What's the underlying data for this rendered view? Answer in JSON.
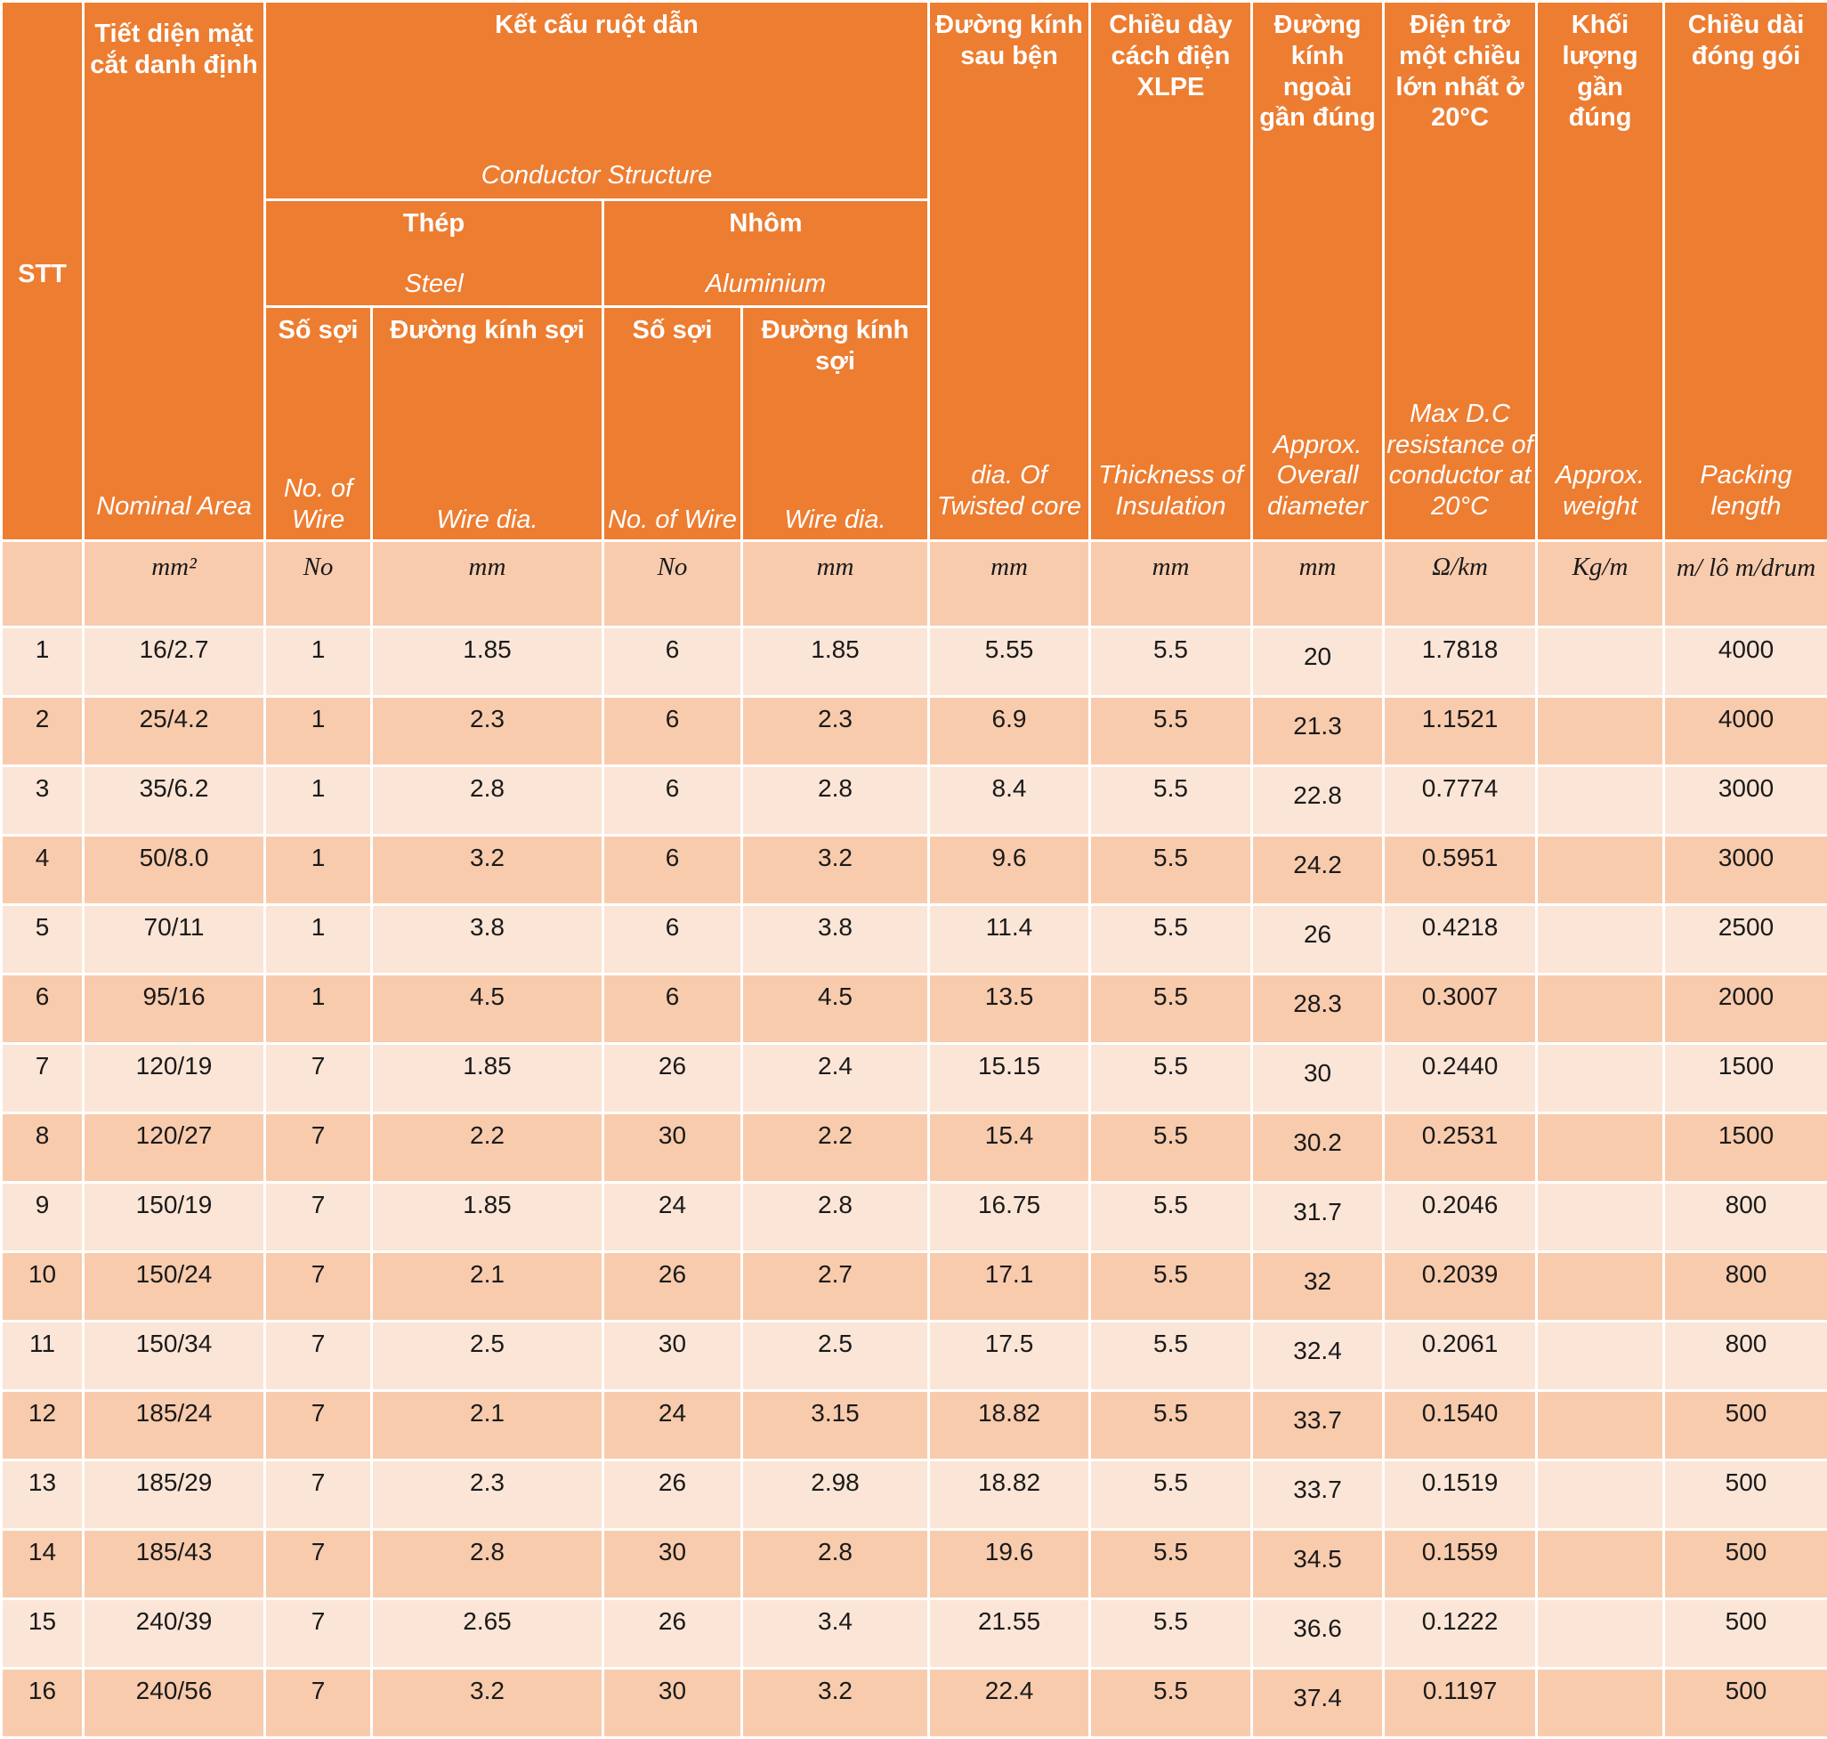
{
  "headers": {
    "stt": "STT",
    "nominal": {
      "vi": "Tiết diện mặt cắt danh định",
      "en": "Nominal Area"
    },
    "conductor": {
      "vi": "Kết cấu ruột dẫn",
      "en": "Conductor Structure"
    },
    "steel": {
      "vi": "Thép",
      "en": "Steel"
    },
    "aluminium": {
      "vi": "Nhôm",
      "en": "Aluminium"
    },
    "steel_no": {
      "vi": "Số sợi",
      "en": "No. of Wire"
    },
    "steel_dia": {
      "vi": "Đường kính sợi",
      "en": "Wire dia."
    },
    "alu_no": {
      "vi": "Số sợi",
      "en": "No. of Wire"
    },
    "alu_dia": {
      "vi": "Đường kính sợi",
      "en": "Wire dia."
    },
    "twisted": {
      "vi": "Đường kính sau bện",
      "en": "dia. Of Twisted core"
    },
    "insulation": {
      "vi": "Chiều dày cách điện XLPE",
      "en": "Thickness of Insulation"
    },
    "overall": {
      "vi": "Đường kính ngoài gần đúng",
      "en": "Approx. Overall diameter"
    },
    "resistance": {
      "vi": "Điện trở một chiều lớn nhất ở 20°C",
      "en": "Max D.C resistance of conductor at 20°C"
    },
    "weight": {
      "vi": "Khối lượng gần đúng",
      "en": "Approx. weight"
    },
    "packing": {
      "vi": "Chiều dài đóng gói",
      "en": "Packing length"
    }
  },
  "units": {
    "stt": "",
    "nominal": "mm²",
    "steel_no": "No",
    "steel_dia": "mm",
    "alu_no": "No",
    "alu_dia": "mm",
    "twisted": "mm",
    "insulation": "mm",
    "overall": "mm",
    "resistance": "Ω/km",
    "weight": "Kg/m",
    "packing": "m/ lô m/drum"
  },
  "rows": [
    [
      "1",
      "16/2.7",
      "1",
      "1.85",
      "6",
      "1.85",
      "5.55",
      "5.5",
      "20",
      "1.7818",
      "",
      "4000"
    ],
    [
      "2",
      "25/4.2",
      "1",
      "2.3",
      "6",
      "2.3",
      "6.9",
      "5.5",
      "21.3",
      "1.1521",
      "",
      "4000"
    ],
    [
      "3",
      "35/6.2",
      "1",
      "2.8",
      "6",
      "2.8",
      "8.4",
      "5.5",
      "22.8",
      "0.7774",
      "",
      "3000"
    ],
    [
      "4",
      "50/8.0",
      "1",
      "3.2",
      "6",
      "3.2",
      "9.6",
      "5.5",
      "24.2",
      "0.5951",
      "",
      "3000"
    ],
    [
      "5",
      "70/11",
      "1",
      "3.8",
      "6",
      "3.8",
      "11.4",
      "5.5",
      "26",
      "0.4218",
      "",
      "2500"
    ],
    [
      "6",
      "95/16",
      "1",
      "4.5",
      "6",
      "4.5",
      "13.5",
      "5.5",
      "28.3",
      "0.3007",
      "",
      "2000"
    ],
    [
      "7",
      "120/19",
      "7",
      "1.85",
      "26",
      "2.4",
      "15.15",
      "5.5",
      "30",
      "0.2440",
      "",
      "1500"
    ],
    [
      "8",
      "120/27",
      "7",
      "2.2",
      "30",
      "2.2",
      "15.4",
      "5.5",
      "30.2",
      "0.2531",
      "",
      "1500"
    ],
    [
      "9",
      "150/19",
      "7",
      "1.85",
      "24",
      "2.8",
      "16.75",
      "5.5",
      "31.7",
      "0.2046",
      "",
      "800"
    ],
    [
      "10",
      "150/24",
      "7",
      "2.1",
      "26",
      "2.7",
      "17.1",
      "5.5",
      "32",
      "0.2039",
      "",
      "800"
    ],
    [
      "11",
      "150/34",
      "7",
      "2.5",
      "30",
      "2.5",
      "17.5",
      "5.5",
      "32.4",
      "0.2061",
      "",
      "800"
    ],
    [
      "12",
      "185/24",
      "7",
      "2.1",
      "24",
      "3.15",
      "18.82",
      "5.5",
      "33.7",
      "0.1540",
      "",
      "500"
    ],
    [
      "13",
      "185/29",
      "7",
      "2.3",
      "26",
      "2.98",
      "18.82",
      "5.5",
      "33.7",
      "0.1519",
      "",
      "500"
    ],
    [
      "14",
      "185/43",
      "7",
      "2.8",
      "30",
      "2.8",
      "19.6",
      "5.5",
      "34.5",
      "0.1559",
      "",
      "500"
    ],
    [
      "15",
      "240/39",
      "7",
      "2.65",
      "26",
      "3.4",
      "21.55",
      "5.5",
      "36.6",
      "0.1222",
      "",
      "500"
    ],
    [
      "16",
      "240/56",
      "7",
      "3.2",
      "30",
      "3.2",
      "22.4",
      "5.5",
      "37.4",
      "0.1197",
      "",
      "500"
    ]
  ]
}
